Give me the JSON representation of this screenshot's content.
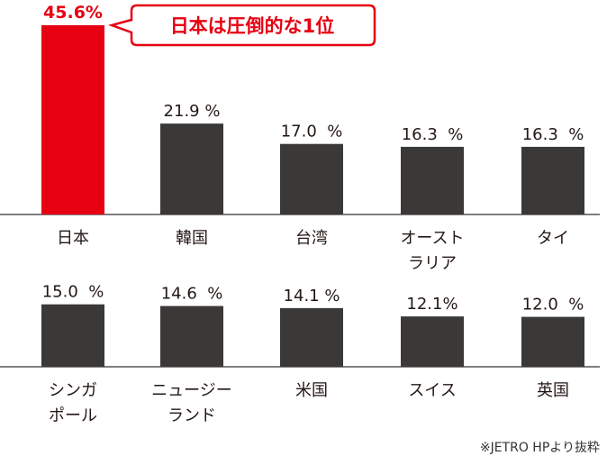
{
  "chart_data": [
    {
      "type": "bar",
      "categories": [
        "日本",
        "韓国",
        "台湾",
        "オースト\nラリア",
        "タイ"
      ],
      "values": [
        45.6,
        21.9,
        17.0,
        16.3,
        16.3
      ],
      "value_labels": [
        "45.6%",
        "21.9 %",
        "17.0  %",
        "16.3  %",
        "16.3  %"
      ],
      "highlight_index": 0,
      "ylim": [
        0,
        46
      ]
    },
    {
      "type": "bar",
      "categories": [
        "シンガ\nポール",
        "ニュージー\nランド",
        "米国",
        "スイス",
        "英国"
      ],
      "values": [
        15.0,
        14.6,
        14.1,
        12.1,
        12.0
      ],
      "value_labels": [
        "15.0  %",
        "14.6  %",
        "14.1 %",
        "12.1%",
        "12.0  %"
      ],
      "ylim": [
        0,
        46
      ]
    }
  ],
  "callout": {
    "text": "日本は圧倒的な1位"
  },
  "source_note": "※JETRO HPより抜粋",
  "colors": {
    "highlight": "#e60012",
    "bar": "#3b3838",
    "axis": "#555555",
    "text": "#231815"
  }
}
